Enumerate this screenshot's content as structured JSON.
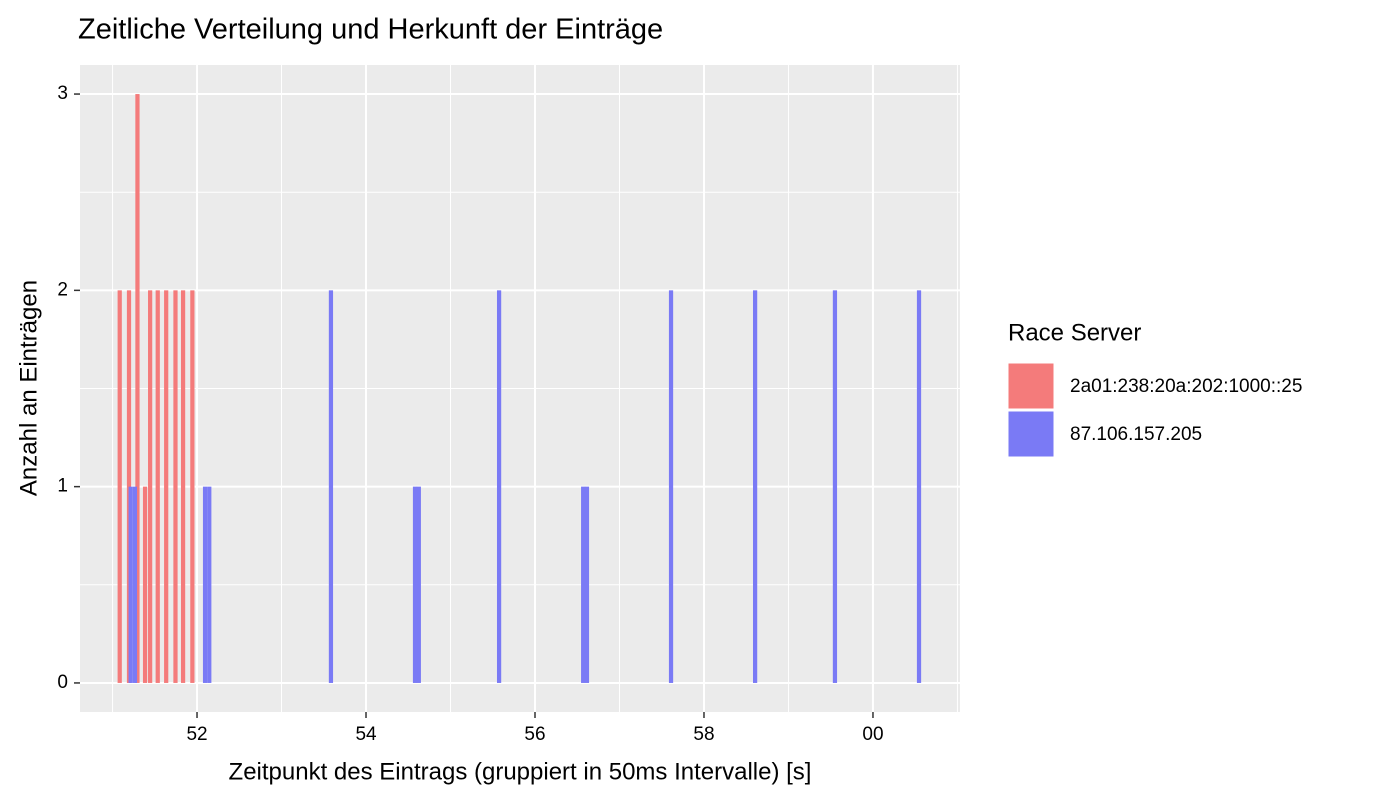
{
  "chart_data": {
    "type": "histogram",
    "title": "Zeitliche Verteilung und Herkunft der Einträge",
    "x_label": "Zeitpunkt des Eintrags (gruppiert in 50ms Intervalle) [s]",
    "y_label": "Anzahl an Einträgen",
    "legend_title": "Race Server",
    "legend_position": "right",
    "binwidth": 0.05,
    "series": [
      {
        "name": "2a01:238:20a:202:1000::25",
        "color": "#f47b7b",
        "x": [
          51.06,
          51.17,
          51.27,
          51.36,
          51.42,
          51.51,
          51.61,
          51.72,
          51.81,
          51.92
        ],
        "values": [
          2,
          2,
          3,
          1,
          2,
          2,
          2,
          2,
          2,
          2
        ]
      },
      {
        "name": "87.106.157.205",
        "color": "#7a7af5",
        "x": [
          51.19,
          51.24,
          52.07,
          52.12,
          53.56,
          54.555,
          54.6,
          55.55,
          56.545,
          56.59,
          57.585,
          58.58,
          59.525,
          60.52
        ],
        "values": [
          1,
          1,
          1,
          1,
          2,
          1,
          1,
          2,
          1,
          1,
          2,
          2,
          2,
          2
        ]
      }
    ],
    "xlim": [
      50.615,
      61.03
    ],
    "ylim": [
      -0.148,
      3.148
    ],
    "xticks": [
      52,
      54,
      56,
      58,
      {
        "value": 60,
        "label": "00"
      }
    ],
    "yticks": [
      0,
      1,
      2,
      3
    ],
    "xminor": [
      51,
      53,
      55,
      57,
      59,
      61
    ],
    "yminor": [
      0.5,
      1.5,
      2.5
    ],
    "grid": true
  }
}
